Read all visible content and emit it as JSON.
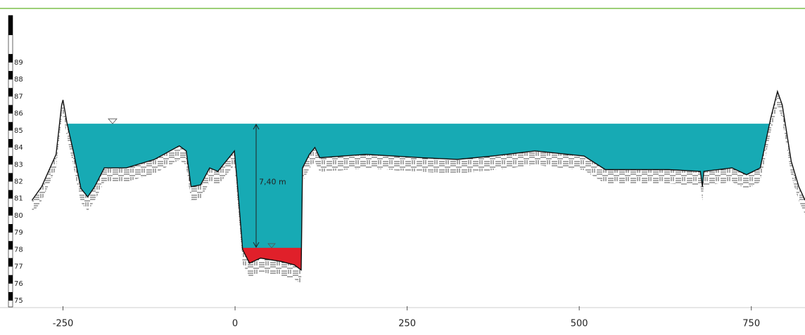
{
  "chart_data": {
    "type": "profile",
    "annotation": "7,40 m",
    "water_level": 85.4,
    "sediment_level": 78.1,
    "water_color": "#17aab4",
    "sediment_color": "#e0202a",
    "x": [
      -295,
      -281,
      -260,
      -252,
      -250,
      -244,
      -234,
      -224,
      -214,
      -204,
      -190,
      -158,
      -117,
      -81,
      -71,
      -64,
      -50,
      -37,
      -25,
      -9,
      -1,
      3,
      11,
      21,
      37,
      52,
      67,
      86,
      96,
      98,
      108,
      116,
      123,
      190,
      271,
      323,
      374,
      436,
      507,
      538,
      579,
      630,
      676,
      679,
      681,
      722,
      743,
      763,
      778,
      788,
      795,
      808,
      819,
      828
    ],
    "values": [
      80.9,
      81.7,
      83.6,
      86.5,
      86.8,
      85.4,
      83.6,
      81.6,
      81.1,
      81.7,
      82.8,
      82.8,
      83.3,
      84.1,
      83.8,
      81.7,
      81.8,
      82.8,
      82.6,
      83.4,
      83.8,
      82.0,
      78.0,
      77.2,
      77.5,
      77.4,
      77.3,
      77.1,
      76.8,
      82.8,
      83.6,
      84.0,
      83.4,
      83.6,
      83.4,
      83.3,
      83.5,
      83.8,
      83.5,
      82.7,
      82.7,
      82.7,
      82.6,
      81.7,
      82.6,
      82.8,
      82.4,
      82.8,
      85.7,
      87.3,
      86.5,
      83.2,
      81.7,
      80.9
    ],
    "xlim": [
      -300,
      828
    ],
    "xticks": [
      -250,
      0,
      250,
      500,
      750
    ],
    "ylim": [
      75,
      89
    ],
    "yticks": [
      75,
      76,
      77,
      78,
      79,
      80,
      81,
      82,
      83,
      84,
      85,
      86,
      87,
      88,
      89
    ]
  }
}
